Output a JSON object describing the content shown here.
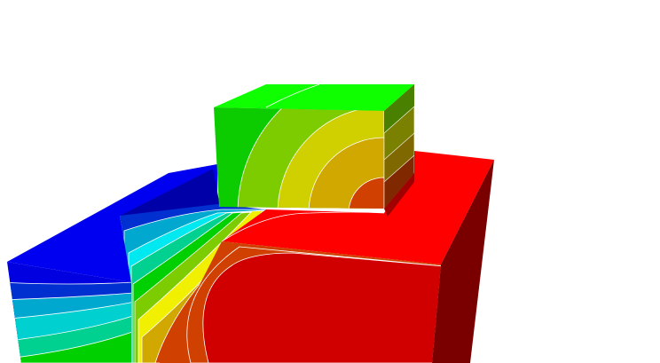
{
  "figure": {
    "kind": "3D contour plot (no printed text, legend or axes)",
    "contour_colors": [
      "#0000f0",
      "#0000a0",
      "#0030d0",
      "#00a8d0",
      "#00d0d0",
      "#00d090",
      "#00d000",
      "#0ccc00",
      "#7ccc00",
      "#d0d000",
      "#d0a800",
      "#d04000",
      "#d00000",
      "#ff0000"
    ],
    "contour_line_color": "#ffffff",
    "background": "#ffffff"
  }
}
